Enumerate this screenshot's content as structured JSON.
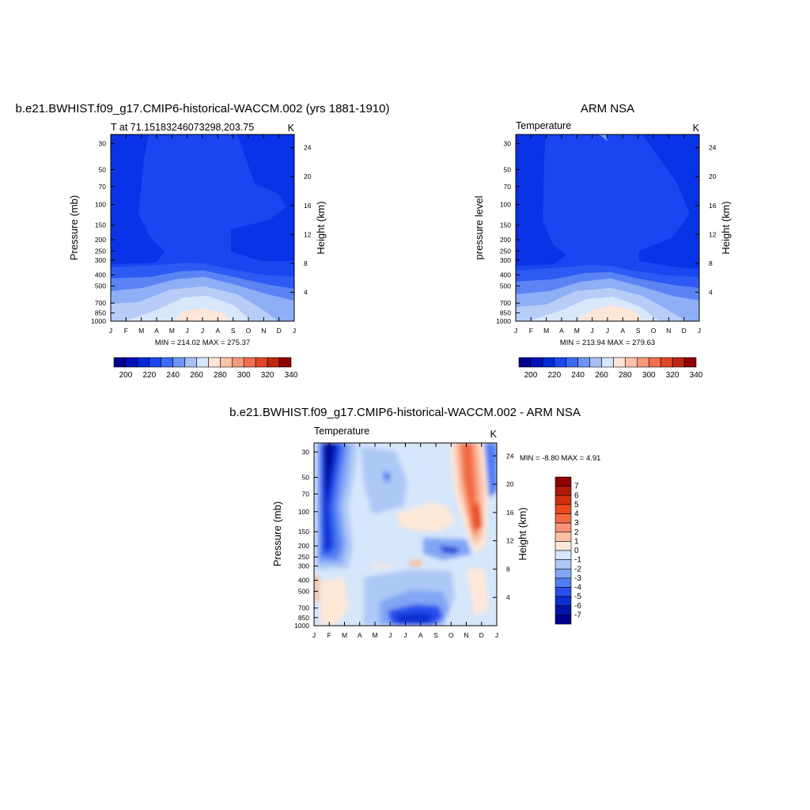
{
  "figure": {
    "panel_a": {
      "title": "b.e21.BWHIST.f09_g17.CMIP6-historical-WACCM.002 (yrs 1881-1910)",
      "left_label": "T at 71.15183246073298,203.75",
      "right_label": "K",
      "ylabel_left": "Pressure (mb)",
      "ylabel_right": "Height (km)",
      "stats": "MIN = 214.02 MAX = 275.37"
    },
    "panel_b": {
      "title": "ARM NSA",
      "left_label": "Temperature",
      "right_label": "K",
      "ylabel_left": "pressure level",
      "ylabel_right": "Height (km)",
      "stats": "MIN = 213.94 MAX = 279.63"
    },
    "panel_c": {
      "title": "b.e21.BWHIST.f09_g17.CMIP6-historical-WACCM.002 - ARM NSA",
      "left_label": "Temperature",
      "right_label": "K",
      "ylabel_left": "Pressure (mb)",
      "ylabel_right": "Height (km)",
      "stats": "MIN =  -8.80 MAX =   4.91"
    }
  },
  "chart_data": [
    {
      "type": "heatmap",
      "title": "b.e21.BWHIST.f09_g17.CMIP6-historical-WACCM.002 (yrs 1881-1910)",
      "variable": "T at 71.15183246073298,203.75",
      "units": "K",
      "x_ticks": [
        "J",
        "F",
        "M",
        "A",
        "M",
        "J",
        "J",
        "A",
        "S",
        "O",
        "N",
        "D",
        "J"
      ],
      "y_ticks_pressure": [
        30,
        50,
        70,
        100,
        150,
        200,
        250,
        300,
        400,
        500,
        700,
        850,
        1000
      ],
      "y_ticks_height": [
        24,
        20,
        16,
        12,
        8,
        4
      ],
      "ylim_pressure": [
        1000,
        25
      ],
      "min": 214.02,
      "max": 275.37,
      "colorbar": {
        "labels": [
          "200",
          "220",
          "240",
          "260",
          "280",
          "300",
          "320",
          "340"
        ],
        "colors": [
          "#00008f",
          "#0010b8",
          "#0028d8",
          "#1848f0",
          "#3c6cf5",
          "#6f95f5",
          "#a6c0f5",
          "#d6e6fb",
          "#fde5d7",
          "#fbc3a8",
          "#f79a79",
          "#f2704e",
          "#e04628",
          "#c0260f",
          "#8f0000"
        ]
      },
      "grid": false
    },
    {
      "type": "heatmap",
      "title": "ARM NSA",
      "variable": "Temperature",
      "units": "K",
      "x_ticks": [
        "J",
        "F",
        "M",
        "A",
        "M",
        "J",
        "J",
        "A",
        "S",
        "O",
        "N",
        "D",
        "J"
      ],
      "y_ticks_pressure": [
        30,
        50,
        70,
        100,
        150,
        200,
        250,
        300,
        400,
        500,
        700,
        850,
        1000
      ],
      "y_ticks_height": [
        24,
        20,
        16,
        12,
        8,
        4
      ],
      "ylim_pressure": [
        1000,
        25
      ],
      "min": 213.94,
      "max": 279.63,
      "colorbar": {
        "labels": [
          "200",
          "220",
          "240",
          "260",
          "280",
          "300",
          "320",
          "340"
        ],
        "colors": [
          "#00008f",
          "#0010b8",
          "#0028d8",
          "#1848f0",
          "#3c6cf5",
          "#6f95f5",
          "#a6c0f5",
          "#d6e6fb",
          "#fde5d7",
          "#fbc3a8",
          "#f79a79",
          "#f2704e",
          "#e04628",
          "#c0260f",
          "#8f0000"
        ]
      },
      "grid": false
    },
    {
      "type": "heatmap",
      "title": "b.e21.BWHIST.f09_g17.CMIP6-historical-WACCM.002 - ARM NSA",
      "variable": "Temperature",
      "units": "K",
      "x_ticks": [
        "J",
        "F",
        "M",
        "A",
        "M",
        "J",
        "J",
        "A",
        "S",
        "O",
        "N",
        "D",
        "J"
      ],
      "y_ticks_pressure": [
        30,
        50,
        70,
        100,
        150,
        200,
        250,
        300,
        400,
        500,
        700,
        850,
        1000
      ],
      "y_ticks_height": [
        24,
        20,
        16,
        12,
        8,
        4
      ],
      "ylim_pressure": [
        1000,
        25
      ],
      "min": -8.8,
      "max": 4.91,
      "colorbar": {
        "labels": [
          "7",
          "6",
          "5",
          "4",
          "3",
          "2",
          "1",
          "0",
          "-1",
          "-2",
          "-3",
          "-4",
          "-5",
          "-6",
          "-7"
        ],
        "colors": [
          "#8f0000",
          "#b01a06",
          "#d0300e",
          "#ea4a1e",
          "#f26b40",
          "#f79372",
          "#fbbfa2",
          "#fde8d8",
          "#d6e6fb",
          "#aec8f6",
          "#82a6f4",
          "#4f7ef4",
          "#2850ec",
          "#0c2ed0",
          "#0014a8",
          "#00008f"
        ]
      },
      "grid": false
    }
  ]
}
